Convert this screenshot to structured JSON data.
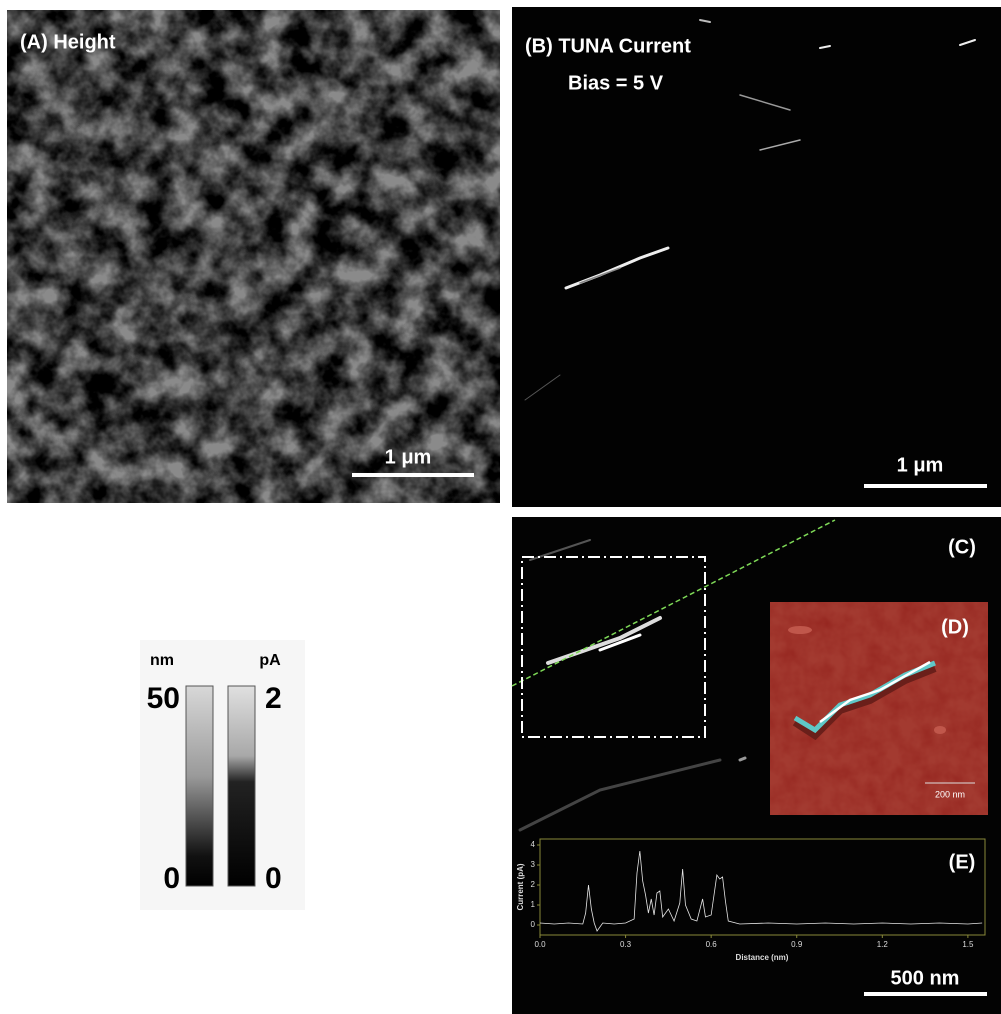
{
  "panels": {
    "a": {
      "label": "(A) Height",
      "scale_bar": "1 μm"
    },
    "b": {
      "label": "(B) TUNA Current",
      "bias": "Bias = 5 V",
      "scale_bar": "1 μm"
    },
    "c": {
      "label": "(C)",
      "scale_bar": "500 nm"
    },
    "d": {
      "label": "(D)",
      "scale_bar": "200 nm"
    },
    "e": {
      "label": "(E)"
    }
  },
  "colorbars": [
    {
      "unit": "nm",
      "max": 50,
      "min": 0
    },
    {
      "unit": "pA",
      "max": 2,
      "min": 0
    }
  ],
  "chart_data": {
    "type": "line",
    "xlabel": "Distance (nm)",
    "ylabel": "Current (pA)",
    "color": "#e6e6e6",
    "x": [
      0,
      0.05,
      0.1,
      0.15,
      0.16,
      0.17,
      0.18,
      0.19,
      0.2,
      0.22,
      0.26,
      0.3,
      0.33,
      0.34,
      0.35,
      0.36,
      0.37,
      0.38,
      0.39,
      0.4,
      0.41,
      0.42,
      0.43,
      0.45,
      0.47,
      0.49,
      0.5,
      0.51,
      0.53,
      0.55,
      0.57,
      0.58,
      0.6,
      0.61,
      0.62,
      0.63,
      0.64,
      0.65,
      0.66,
      0.7,
      0.8,
      0.9,
      1.0,
      1.1,
      1.2,
      1.3,
      1.4,
      1.5,
      1.55
    ],
    "values": [
      0.1,
      0.05,
      0.1,
      0.05,
      0.6,
      2.0,
      0.8,
      0.1,
      -0.3,
      0.1,
      0.05,
      0.1,
      0.3,
      2.6,
      3.7,
      2.2,
      1.5,
      0.6,
      1.3,
      0.5,
      1.6,
      1.7,
      0.4,
      0.8,
      0.2,
      1.1,
      2.8,
      1.0,
      0.3,
      0.2,
      1.3,
      0.4,
      0.5,
      1.5,
      2.5,
      2.3,
      2.4,
      1.2,
      0.2,
      0.05,
      0.1,
      0.05,
      0.1,
      0.05,
      0.1,
      0.05,
      0.1,
      0.05,
      0.1
    ],
    "xlim": [
      0,
      1.56
    ],
    "ylim": [
      -0.5,
      4.3
    ],
    "xticks": [
      {
        "value": 0,
        "label": "0.0"
      },
      0.3,
      0.6,
      0.9,
      1.2,
      1.5
    ],
    "yticks": [
      0,
      1,
      2,
      3,
      4
    ]
  }
}
